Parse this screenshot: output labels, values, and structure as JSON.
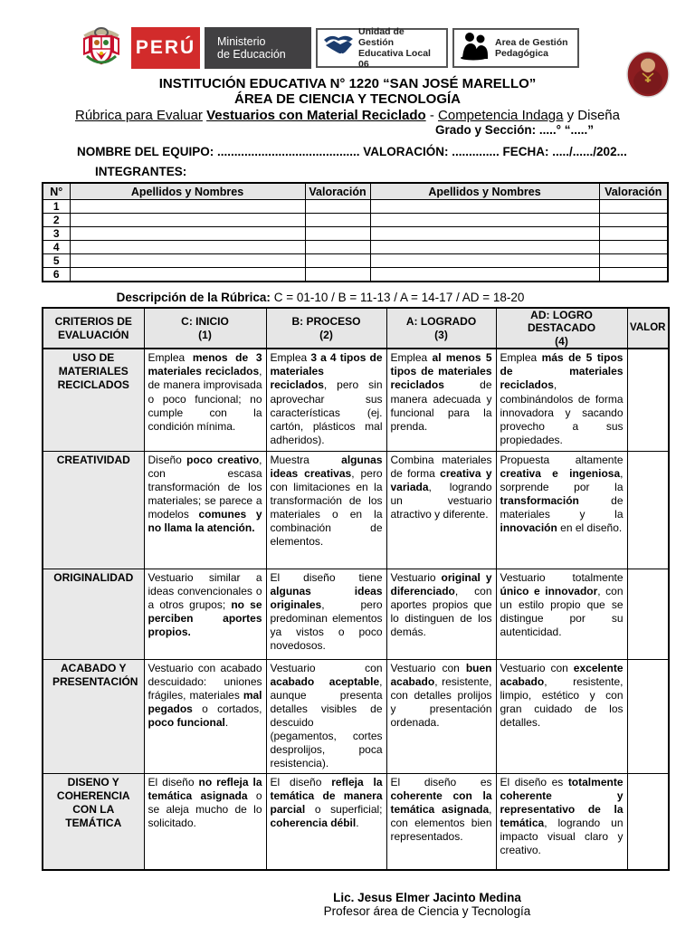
{
  "header": {
    "logos": {
      "peru": "PERÚ",
      "ministerio_line1": "Ministerio",
      "ministerio_line2": "de Educación",
      "ugel_line1": "Unidad de Gestión",
      "ugel_line2": "Educativa Local 06",
      "agp_line1": "Area de Gestión",
      "agp_line2": "Pedagógica"
    },
    "icons": {
      "coat_of_arms": "peru-coat-of-arms-icon",
      "handshake": "handshake-icon",
      "people": "people-silhouette-icon",
      "portrait": "san-jose-marello-portrait"
    },
    "title_line1": "INSTITUCIÓN EDUCATIVA N° 1220 “SAN JOSÉ MARELLO”",
    "title_line2": "ÁREA DE CIENCIA Y TECNOLOGÍA",
    "subtitle_segments": [
      {
        "t": "Rúbrica para Evaluar",
        "u": true
      },
      {
        "t": " "
      },
      {
        "t": "Vestuarios con Material Reciclado",
        "b": true,
        "u": true
      },
      {
        "t": " - "
      },
      {
        "t": "Competencia Indaga",
        "u": true
      },
      {
        "t": " y Diseña"
      }
    ],
    "grade_line": "Grado y Sección: .....° “.....”"
  },
  "team": {
    "name_line": "NOMBRE DEL EQUIPO: .......................................... VALORACIÓN: .............. FECHA: ...../....../202...",
    "integrantes_label": "INTEGRANTES:"
  },
  "members_table": {
    "headers": [
      "N°",
      "Apellidos y Nombres",
      "Valoración",
      "Apellidos y Nombres",
      "Valoración"
    ],
    "rows": [
      "1",
      "2",
      "3",
      "4",
      "5",
      "6"
    ]
  },
  "rubric": {
    "description_label": "Descripción de la Rúbrica:",
    "scale": "C = 01-10  /  B = 11-13  /  A = 14-17  /  AD = 18-20",
    "headers": [
      {
        "label": "CRITERIOS DE EVALUACIÓN",
        "sub": ""
      },
      {
        "label": "C: INICIO",
        "sub": "(1)"
      },
      {
        "label": "B: PROCESO",
        "sub": "(2)"
      },
      {
        "label": "A: LOGRADO",
        "sub": "(3)"
      },
      {
        "label": "AD: LOGRO DESTACADO",
        "sub": "(4)"
      },
      {
        "label": "VALOR",
        "sub": ""
      }
    ],
    "rows": [
      {
        "criterion": "USO DE MATERIALES RECICLADOS",
        "c": "Emplea **menos de 3 materiales reciclados**, de manera improvisada o poco funcional; no cumple con la condición mínima.",
        "b": "Emplea **3 a 4 tipos de materiales reciclados**, pero sin aprovechar sus características (ej. cartón, plásticos mal adheridos).",
        "a": "Emplea **al menos 5 tipos de materiales reciclados** de manera adecuada y funcional para la prenda.",
        "ad": "Emplea **más de 5 tipos de materiales reciclados**, combinándolos de forma innovadora y sacando provecho a sus propiedades."
      },
      {
        "criterion": "CREATIVIDAD",
        "c": "Diseño **poco creativo**, con escasa transformación de los materiales; se parece a modelos **comunes y no llama la atención.**",
        "b": "Muestra **algunas ideas creativas**, pero con limitaciones en la transformación de los materiales o en la combinación de elementos.",
        "a": "Combina materiales de forma **creativa y variada**, logrando un vestuario atractivo y diferente.",
        "ad": "Propuesta altamente **creativa e ingeniosa**, sorprende por la **transformación** de materiales y la **innovación** en el diseño."
      },
      {
        "criterion": "ORIGINALIDAD",
        "c": "Vestuario similar a ideas convencionales o a otros grupos; **no se perciben aportes propios.**",
        "b": "El diseño tiene **algunas ideas originales**, pero predominan elementos ya vistos o poco novedosos.",
        "a": "Vestuario **original y diferenciado**, con aportes propios que lo distinguen de los demás.",
        "ad": "Vestuario totalmente **único e innovador**, con un estilo propio que se distingue por su autenticidad."
      },
      {
        "criterion": "ACABADO Y PRESENTACIÓN",
        "c": "Vestuario con acabado descuidado: uniones frágiles, materiales **mal pegados** o cortados, **poco funcional**.",
        "b": "Vestuario con **acabado aceptable**, aunque presenta detalles visibles de descuido (pegamentos, cortes desprolijos, poca resistencia).",
        "a": "Vestuario con **buen acabado**, resistente, con detalles prolijos y presentación ordenada.",
        "ad": "Vestuario con **excelente acabado**, resistente, limpio, estético y con gran cuidado de los detalles."
      },
      {
        "criterion": "DISENO Y COHERENCIA CON LA TEMÁTICA",
        "c": "El diseño **no refleja la temática asignada** o se aleja mucho de lo solicitado.",
        "b": "El diseño **refleja la temática de manera parcial** o superficial; **coherencia débil**.",
        "a": "El diseño es **coherente con la temática asignada**, con elementos bien representados.",
        "ad": "El diseño es **totalmente coherente y representativo de la temática**, logrando un impacto visual claro y creativo."
      }
    ]
  },
  "footer": {
    "name": "Lic. Jesus Elmer Jacinto Medina",
    "role": "Profesor área de Ciencia y Tecnología"
  },
  "colors": {
    "peru_red": "#d22b2b",
    "minedu_gray": "#414042",
    "table_header_gray": "#e6e6e6",
    "ugel_navy": "#1b3c6e",
    "robe_red": "#8c1d20"
  }
}
